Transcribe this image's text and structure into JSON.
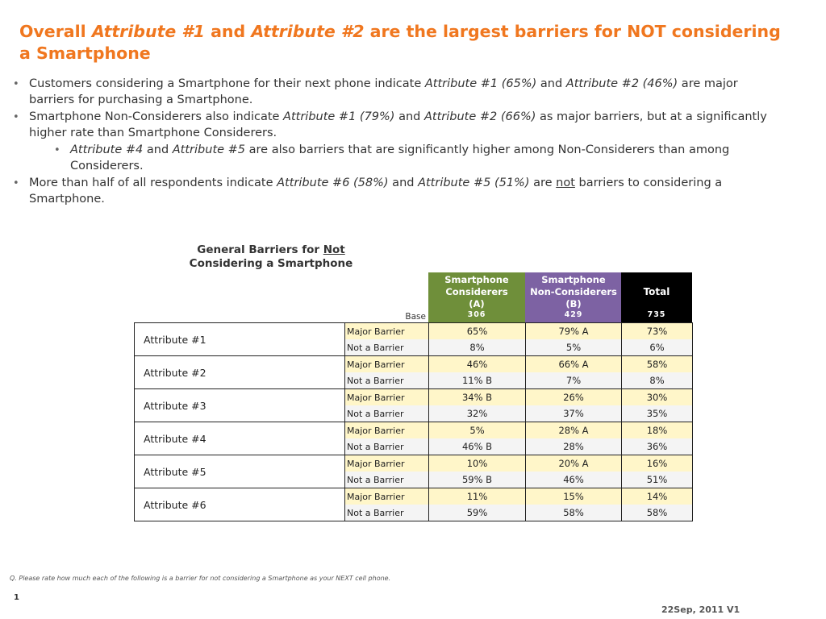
{
  "title": {
    "part1": "Overall ",
    "attr1": "Attribute #1",
    "part2": " and ",
    "attr2": "Attribute #2",
    "part3": " are the largest barriers for NOT considering a Smartphone"
  },
  "bullets": {
    "b1": {
      "t1": "Customers considering a Smartphone for their next phone indicate ",
      "i1": "Attribute #1 (65%)",
      "t2": " and ",
      "i2": "Attribute #2 (46%)",
      "t3": " are major barriers for purchasing a Smartphone."
    },
    "b2": {
      "t1": "Smartphone Non-Considerers also indicate ",
      "i1": "Attribute #1 (79%)",
      "t2": " and ",
      "i2": "Attribute #2 (66%)",
      "t3": " as major barriers, but at a significantly higher rate than Smartphone Considerers."
    },
    "b3": {
      "i1": "Attribute #4",
      "t1": " and ",
      "i2": "Attribute #5",
      "t2": " are also barriers that are significantly higher among Non-Considerers than among Considerers."
    },
    "b4": {
      "t1": "More than half of all respondents indicate ",
      "i1": "Attribute #6 (58%)",
      "t2": " and ",
      "i2": "Attribute #5 (51%)",
      "t3": " are ",
      "u1": "not",
      "t4": " barriers to considering a Smartphone."
    }
  },
  "table": {
    "title_line1": "General Barriers for ",
    "title_underline": "Not",
    "title_line2": "Considering a Smartphone",
    "base_label": "Base",
    "columns": {
      "a": {
        "line1": "Smartphone",
        "line2": "Considerers",
        "line3": "(A)",
        "base": "306"
      },
      "b": {
        "line1": "Smartphone",
        "line2": "Non-Considerers",
        "line3": "(B)",
        "base": "429"
      },
      "t": {
        "label": "Total",
        "base": "735"
      }
    },
    "rows": [
      {
        "attribute": "Attribute #1",
        "major": {
          "type": "Major Barrier",
          "a": "65%",
          "b": "79%  A",
          "t": "73%"
        },
        "not": {
          "type": "Not a Barrier",
          "a": "8%",
          "b": "5%",
          "t": "6%"
        }
      },
      {
        "attribute": "Attribute #2",
        "major": {
          "type": "Major Barrier",
          "a": "46%",
          "b": "66%  A",
          "t": "58%"
        },
        "not": {
          "type": "Not a Barrier",
          "a": "11%  B",
          "b": "7%",
          "t": "8%"
        }
      },
      {
        "attribute": "Attribute #3",
        "major": {
          "type": "Major Barrier",
          "a": "34%  B",
          "b": "26%",
          "t": "30%"
        },
        "not": {
          "type": "Not a Barrier",
          "a": "32%",
          "b": "37%",
          "t": "35%"
        }
      },
      {
        "attribute": "Attribute #4",
        "major": {
          "type": "Major Barrier",
          "a": "5%",
          "b": "28%  A",
          "t": "18%"
        },
        "not": {
          "type": "Not a Barrier",
          "a": "46%  B",
          "b": "28%",
          "t": "36%"
        }
      },
      {
        "attribute": "Attribute #5",
        "major": {
          "type": "Major Barrier",
          "a": "10%",
          "b": "20%  A",
          "t": "16%"
        },
        "not": {
          "type": "Not a Barrier",
          "a": "59%  B",
          "b": "46%",
          "t": "51%"
        }
      },
      {
        "attribute": "Attribute #6",
        "major": {
          "type": "Major Barrier",
          "a": "11%",
          "b": "15%",
          "t": "14%"
        },
        "not": {
          "type": "Not a Barrier",
          "a": "59%",
          "b": "58%",
          "t": "58%"
        }
      }
    ]
  },
  "footnote": "Q. Please rate how much each of the following is a barrier for not considering a Smartphone as your NEXT cell phone.",
  "page_number": "1",
  "date": "22Sep, 2011 V1",
  "colors": {
    "title": "#f0771f",
    "considerers": "#6f8f3a",
    "non_considerers": "#7d62a3",
    "total": "#000000",
    "major_row": "#fff6c9"
  }
}
